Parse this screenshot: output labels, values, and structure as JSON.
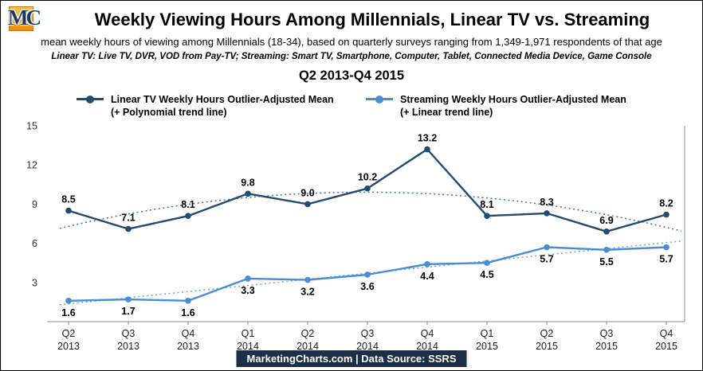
{
  "header": {
    "logo_text": "MC",
    "logo_color": "#EE8A0D",
    "title": "Weekly Viewing Hours Among Millennials, Linear TV vs. Streaming",
    "subtitle": "mean weekly hours of viewing among Millennials (18-34), based on quarterly surveys ranging from 1,349-1,971 respondents of that age",
    "definitions": "Linear TV: Live TV, DVR, VOD from Pay-TV; Streaming: Smart TV, Smartphone, Computer, Tablet, Connected Media Device, Game Console",
    "period": "Q2 2013-Q4 2015"
  },
  "legend": [
    {
      "label": "Linear TV Weekly Hours Outlier-Adjusted Mean",
      "sublabel": "(+ Polynomial trend line)",
      "color": "#26496E"
    },
    {
      "label": "Streaming Weekly Hours Outlier-Adjusted Mean",
      "sublabel": "(+ Linear trend line)",
      "color": "#4C8CD0"
    }
  ],
  "chart_data": {
    "type": "line",
    "categories": [
      "Q2 2013",
      "Q3 2013",
      "Q4 2013",
      "Q1 2014",
      "Q2 2014",
      "Q3 2014",
      "Q4 2014",
      "Q1 2015",
      "Q2 2015",
      "Q3 2015",
      "Q4 2015"
    ],
    "series": [
      {
        "name": "Linear TV Weekly Hours Outlier-Adjusted Mean",
        "values": [
          8.5,
          7.1,
          8.1,
          9.8,
          9.0,
          10.2,
          13.2,
          8.1,
          8.3,
          6.9,
          8.2
        ],
        "color": "#26496E",
        "trend": "polynomial"
      },
      {
        "name": "Streaming Weekly Hours Outlier-Adjusted Mean",
        "values": [
          1.6,
          1.7,
          1.6,
          3.3,
          3.2,
          3.6,
          4.4,
          4.5,
          5.7,
          5.5,
          5.7
        ],
        "color": "#4C8CD0",
        "trend": "linear"
      }
    ],
    "title": "Weekly Viewing Hours Among Millennials, Linear TV vs. Streaming",
    "xlabel": "",
    "ylabel": "",
    "ylim": [
      0,
      15
    ],
    "yticks": [
      3,
      6,
      9,
      12,
      15
    ],
    "grid": false,
    "legend_position": "top",
    "data_labels": true
  },
  "footer": {
    "text": "MarketingCharts.com | Data Source: SSRS",
    "bg": "#1C2F45"
  }
}
